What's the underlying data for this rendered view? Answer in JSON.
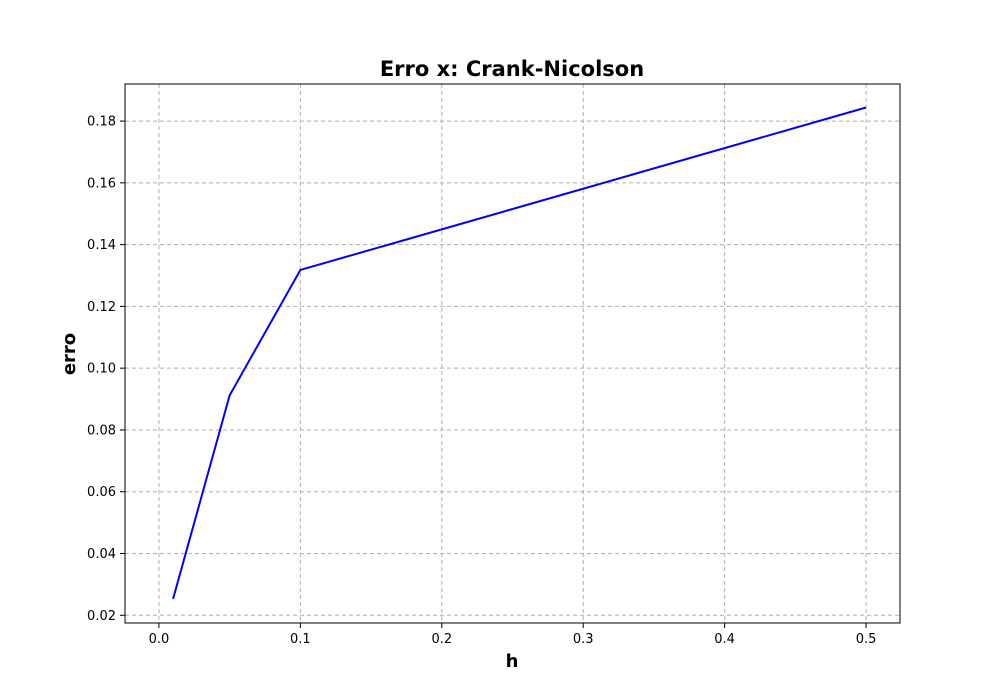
{
  "chart_data": {
    "type": "line",
    "title": "Erro x: Crank-Nicolson",
    "xlabel": "h",
    "ylabel": "erro",
    "xlim": [
      -0.024,
      0.524
    ],
    "ylim": [
      0.0175,
      0.192
    ],
    "xticks": [
      0.0,
      0.1,
      0.2,
      0.3,
      0.4,
      0.5
    ],
    "xtick_labels": [
      "0.0",
      "0.1",
      "0.2",
      "0.3",
      "0.4",
      "0.5"
    ],
    "yticks": [
      0.02,
      0.04,
      0.06,
      0.08,
      0.1,
      0.12,
      0.14,
      0.16,
      0.18
    ],
    "ytick_labels": [
      "0.02",
      "0.04",
      "0.06",
      "0.08",
      "0.10",
      "0.12",
      "0.14",
      "0.16",
      "0.18"
    ],
    "grid": true,
    "series": [
      {
        "color": "#0000ff",
        "x": [
          0.01,
          0.05,
          0.1,
          0.5
        ],
        "values": [
          0.0253,
          0.0912,
          0.1318,
          0.1844
        ]
      }
    ]
  }
}
